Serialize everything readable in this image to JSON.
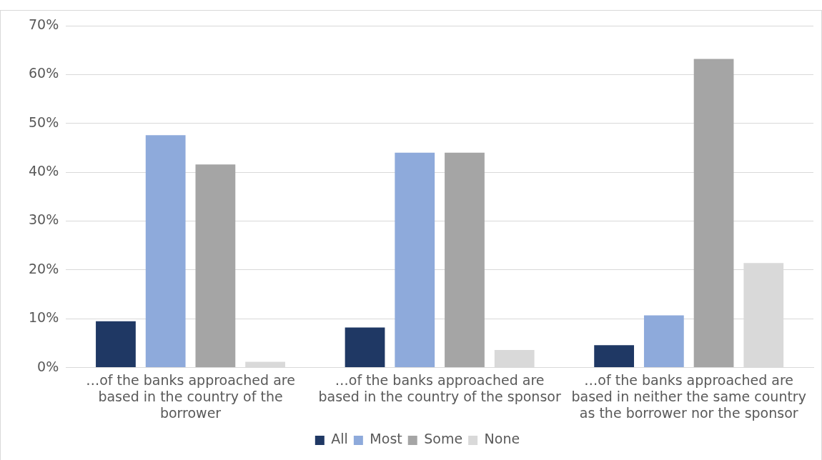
{
  "chart_data": {
    "type": "bar",
    "categories": [
      "…of the banks approached are based in the country of the borrower",
      "…of the banks approached are based in the country of the sponsor",
      "…of the banks approached are based in neither the same country as the borrower nor the sponsor"
    ],
    "series": [
      {
        "name": "All",
        "color": "#1f3864",
        "values": [
          9.5,
          8.2,
          4.6
        ]
      },
      {
        "name": "Most",
        "color": "#8eaadb",
        "values": [
          47.6,
          44.0,
          10.7
        ]
      },
      {
        "name": "Some",
        "color": "#a5a5a5",
        "values": [
          41.6,
          44.0,
          63.2
        ]
      },
      {
        "name": "None",
        "color": "#d9d9d9",
        "values": [
          1.2,
          3.6,
          21.4
        ]
      }
    ],
    "ylim": [
      0,
      70
    ],
    "yticks": [
      {
        "value": 0,
        "label": "0%"
      },
      {
        "value": 10,
        "label": "10%"
      },
      {
        "value": 20,
        "label": "20%"
      },
      {
        "value": 30,
        "label": "30%"
      },
      {
        "value": 40,
        "label": "40%"
      },
      {
        "value": 50,
        "label": "50%"
      },
      {
        "value": 60,
        "label": "60%"
      },
      {
        "value": 70,
        "label": "70%"
      }
    ],
    "grid": "y",
    "legend": "bottom"
  }
}
